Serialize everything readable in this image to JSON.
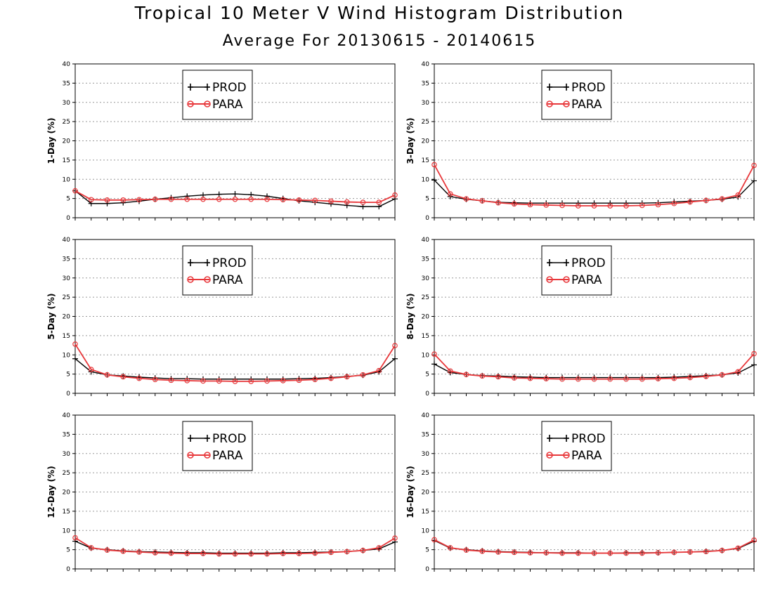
{
  "title": "Tropical 10 Meter V Wind Histogram Distribution",
  "subtitle": "Average For 20130615 - 20140615",
  "colors": {
    "prod": "#000000",
    "para": "#e8383b"
  },
  "chart_data": [
    {
      "type": "line",
      "ylabel": "1-Day (%)",
      "ylim": [
        0,
        40
      ],
      "yticks": [
        0,
        5,
        10,
        15,
        20,
        25,
        30,
        35,
        40
      ],
      "grid": true,
      "legend": "top-center",
      "x": [
        1,
        2,
        3,
        4,
        5,
        6,
        7,
        8,
        9,
        10,
        11,
        12,
        13,
        14,
        15,
        16,
        17,
        18,
        19,
        20,
        21
      ],
      "series": [
        {
          "name": "PROD",
          "marker": "plus",
          "values": [
            7.0,
            3.7,
            3.7,
            3.9,
            4.3,
            4.8,
            5.2,
            5.6,
            5.9,
            6.1,
            6.2,
            6.0,
            5.6,
            5.0,
            4.4,
            4.0,
            3.6,
            3.2,
            2.9,
            2.9,
            4.9
          ]
        },
        {
          "name": "PARA",
          "marker": "circle",
          "values": [
            7.0,
            4.7,
            4.6,
            4.6,
            4.7,
            4.8,
            4.8,
            4.8,
            4.8,
            4.8,
            4.8,
            4.8,
            4.8,
            4.7,
            4.6,
            4.5,
            4.3,
            4.1,
            4.0,
            4.0,
            5.9
          ]
        }
      ]
    },
    {
      "type": "line",
      "ylabel": "3-Day (%)",
      "ylim": [
        0,
        40
      ],
      "yticks": [
        0,
        5,
        10,
        15,
        20,
        25,
        30,
        35,
        40
      ],
      "grid": true,
      "legend": "top-center",
      "x": [
        1,
        2,
        3,
        4,
        5,
        6,
        7,
        8,
        9,
        10,
        11,
        12,
        13,
        14,
        15,
        16,
        17,
        18,
        19,
        20,
        21
      ],
      "series": [
        {
          "name": "PROD",
          "marker": "plus",
          "values": [
            9.8,
            5.5,
            4.8,
            4.4,
            4.0,
            3.9,
            3.8,
            3.8,
            3.8,
            3.8,
            3.8,
            3.8,
            3.8,
            3.8,
            3.9,
            4.1,
            4.3,
            4.5,
            4.8,
            5.4,
            9.6
          ]
        },
        {
          "name": "PARA",
          "marker": "circle",
          "values": [
            13.8,
            6.2,
            4.9,
            4.4,
            3.9,
            3.6,
            3.4,
            3.3,
            3.2,
            3.1,
            3.1,
            3.1,
            3.1,
            3.2,
            3.4,
            3.7,
            4.1,
            4.5,
            4.9,
            5.9,
            13.6
          ]
        }
      ]
    },
    {
      "type": "line",
      "ylabel": "5-Day (%)",
      "ylim": [
        0,
        40
      ],
      "yticks": [
        0,
        5,
        10,
        15,
        20,
        25,
        30,
        35,
        40
      ],
      "grid": true,
      "legend": "top-center",
      "x": [
        1,
        2,
        3,
        4,
        5,
        6,
        7,
        8,
        9,
        10,
        11,
        12,
        13,
        14,
        15,
        16,
        17,
        18,
        19,
        20,
        21
      ],
      "series": [
        {
          "name": "PROD",
          "marker": "plus",
          "values": [
            9.0,
            5.6,
            4.8,
            4.5,
            4.2,
            4.0,
            3.8,
            3.8,
            3.7,
            3.7,
            3.7,
            3.7,
            3.7,
            3.7,
            3.8,
            3.9,
            4.1,
            4.4,
            4.7,
            5.6,
            9.0
          ]
        },
        {
          "name": "PARA",
          "marker": "circle",
          "values": [
            12.8,
            6.2,
            4.8,
            4.3,
            3.9,
            3.6,
            3.4,
            3.3,
            3.2,
            3.2,
            3.1,
            3.1,
            3.2,
            3.3,
            3.4,
            3.6,
            3.9,
            4.3,
            4.8,
            5.9,
            12.4
          ]
        }
      ]
    },
    {
      "type": "line",
      "ylabel": "8-Day (%)",
      "ylim": [
        0,
        40
      ],
      "yticks": [
        0,
        5,
        10,
        15,
        20,
        25,
        30,
        35,
        40
      ],
      "grid": true,
      "legend": "top-center",
      "x": [
        1,
        2,
        3,
        4,
        5,
        6,
        7,
        8,
        9,
        10,
        11,
        12,
        13,
        14,
        15,
        16,
        17,
        18,
        19,
        20,
        21
      ],
      "series": [
        {
          "name": "PROD",
          "marker": "plus",
          "values": [
            7.6,
            5.4,
            4.9,
            4.6,
            4.5,
            4.3,
            4.2,
            4.1,
            4.1,
            4.1,
            4.1,
            4.1,
            4.1,
            4.1,
            4.1,
            4.2,
            4.4,
            4.6,
            4.8,
            5.3,
            7.4
          ]
        },
        {
          "name": "PARA",
          "marker": "circle",
          "values": [
            10.2,
            5.8,
            4.9,
            4.5,
            4.3,
            4.0,
            3.9,
            3.8,
            3.7,
            3.7,
            3.7,
            3.7,
            3.7,
            3.7,
            3.8,
            3.9,
            4.1,
            4.4,
            4.8,
            5.6,
            10.3
          ]
        }
      ]
    },
    {
      "type": "line",
      "ylabel": "12-Day (%)",
      "ylim": [
        0,
        40
      ],
      "yticks": [
        0,
        5,
        10,
        15,
        20,
        25,
        30,
        35,
        40
      ],
      "grid": true,
      "legend": "top-center",
      "x": [
        1,
        2,
        3,
        4,
        5,
        6,
        7,
        8,
        9,
        10,
        11,
        12,
        13,
        14,
        15,
        16,
        17,
        18,
        19,
        20,
        21
      ],
      "series": [
        {
          "name": "PROD",
          "marker": "plus",
          "values": [
            7.2,
            5.4,
            5.0,
            4.7,
            4.5,
            4.4,
            4.3,
            4.2,
            4.2,
            4.1,
            4.1,
            4.1,
            4.1,
            4.2,
            4.2,
            4.3,
            4.4,
            4.5,
            4.8,
            5.2,
            7.0
          ]
        },
        {
          "name": "PARA",
          "marker": "circle",
          "values": [
            8.1,
            5.5,
            4.9,
            4.6,
            4.4,
            4.2,
            4.1,
            4.0,
            4.0,
            3.9,
            3.9,
            3.9,
            3.9,
            4.0,
            4.0,
            4.1,
            4.3,
            4.5,
            4.8,
            5.5,
            8.0
          ]
        }
      ]
    },
    {
      "type": "line",
      "ylabel": "16-Day (%)",
      "ylim": [
        0,
        40
      ],
      "yticks": [
        0,
        5,
        10,
        15,
        20,
        25,
        30,
        35,
        40
      ],
      "grid": true,
      "legend": "top-center",
      "x": [
        1,
        2,
        3,
        4,
        5,
        6,
        7,
        8,
        9,
        10,
        11,
        12,
        13,
        14,
        15,
        16,
        17,
        18,
        19,
        20,
        21
      ],
      "series": [
        {
          "name": "PROD",
          "marker": "plus",
          "values": [
            7.4,
            5.4,
            5.0,
            4.7,
            4.5,
            4.4,
            4.3,
            4.2,
            4.2,
            4.2,
            4.1,
            4.1,
            4.2,
            4.2,
            4.2,
            4.3,
            4.4,
            4.6,
            4.8,
            5.3,
            7.2
          ]
        },
        {
          "name": "PARA",
          "marker": "circle",
          "values": [
            7.6,
            5.5,
            4.9,
            4.6,
            4.4,
            4.3,
            4.2,
            4.2,
            4.1,
            4.1,
            4.1,
            4.1,
            4.1,
            4.1,
            4.2,
            4.3,
            4.4,
            4.5,
            4.8,
            5.4,
            7.5
          ]
        }
      ]
    }
  ]
}
